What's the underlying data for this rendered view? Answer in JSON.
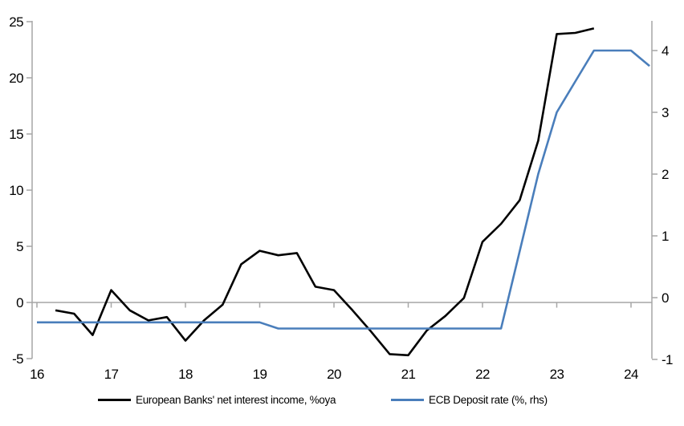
{
  "chart_data": {
    "type": "line",
    "title": "",
    "x_axis": {
      "tick_labels": [
        "16",
        "17",
        "18",
        "19",
        "20",
        "21",
        "22",
        "23",
        "24"
      ],
      "tick_values": [
        2016,
        2017,
        2018,
        2019,
        2020,
        2021,
        2022,
        2023,
        2024
      ],
      "range": [
        2016,
        2024.29
      ],
      "ticks_on_zero_line": true
    },
    "left_axis": {
      "tick_labels": [
        "25",
        "20",
        "15",
        "10",
        "5",
        "0",
        "-5"
      ],
      "tick_values": [
        25,
        20,
        15,
        10,
        5,
        0,
        -5
      ],
      "range": [
        -5,
        25
      ]
    },
    "right_axis": {
      "tick_labels": [
        "4",
        "3",
        "2",
        "1",
        "0",
        "-1"
      ],
      "tick_values": [
        4,
        3,
        2,
        1,
        0,
        -1
      ],
      "range": [
        -0.99,
        4.47
      ]
    },
    "grid": "zero-line-only",
    "legend_position": "bottom",
    "series": [
      {
        "name": "European Banks' net interest income, %oya",
        "axis": "left",
        "color": "#000000",
        "x": [
          2016.25,
          2016.5,
          2016.75,
          2017.0,
          2017.25,
          2017.5,
          2017.75,
          2018.0,
          2018.25,
          2018.5,
          2018.75,
          2019.0,
          2019.25,
          2019.5,
          2019.75,
          2020.0,
          2020.25,
          2020.5,
          2020.75,
          2021.0,
          2021.25,
          2021.5,
          2021.75,
          2022.0,
          2022.25,
          2022.5,
          2022.75,
          2023.0,
          2023.25,
          2023.5
        ],
        "values": [
          -0.7,
          -1.0,
          -2.9,
          1.1,
          -0.7,
          -1.6,
          -1.3,
          -3.4,
          -1.6,
          -0.2,
          3.4,
          4.6,
          4.2,
          4.4,
          1.4,
          1.1,
          -0.7,
          -2.6,
          -4.6,
          -4.7,
          -2.5,
          -1.2,
          0.4,
          5.4,
          7.0,
          9.1,
          14.4,
          23.9,
          24.0,
          24.4
        ]
      },
      {
        "name": "ECB Deposit rate (%, rhs)",
        "axis": "right",
        "color": "#4A7EBB",
        "x": [
          2016.0,
          2016.25,
          2016.5,
          2016.75,
          2017.0,
          2017.25,
          2017.5,
          2017.75,
          2018.0,
          2018.25,
          2018.5,
          2018.75,
          2019.0,
          2019.25,
          2019.5,
          2019.75,
          2020.0,
          2020.25,
          2020.5,
          2020.75,
          2021.0,
          2021.25,
          2021.5,
          2021.75,
          2022.0,
          2022.25,
          2022.5,
          2022.75,
          2023.0,
          2023.25,
          2023.5,
          2023.75,
          2024.0,
          2024.25
        ],
        "values": [
          -0.4,
          -0.4,
          -0.4,
          -0.4,
          -0.4,
          -0.4,
          -0.4,
          -0.4,
          -0.4,
          -0.4,
          -0.4,
          -0.4,
          -0.4,
          -0.5,
          -0.5,
          -0.5,
          -0.5,
          -0.5,
          -0.5,
          -0.5,
          -0.5,
          -0.5,
          -0.5,
          -0.5,
          -0.5,
          -0.5,
          0.75,
          2.0,
          3.0,
          3.5,
          4.0,
          4.0,
          4.0,
          3.75
        ]
      }
    ]
  },
  "colors": {
    "axis_gray": "#A6A6A6",
    "text": "#000000",
    "background": "#FFFFFF",
    "nii_line": "#000000",
    "deposit_line": "#4A7EBB"
  }
}
